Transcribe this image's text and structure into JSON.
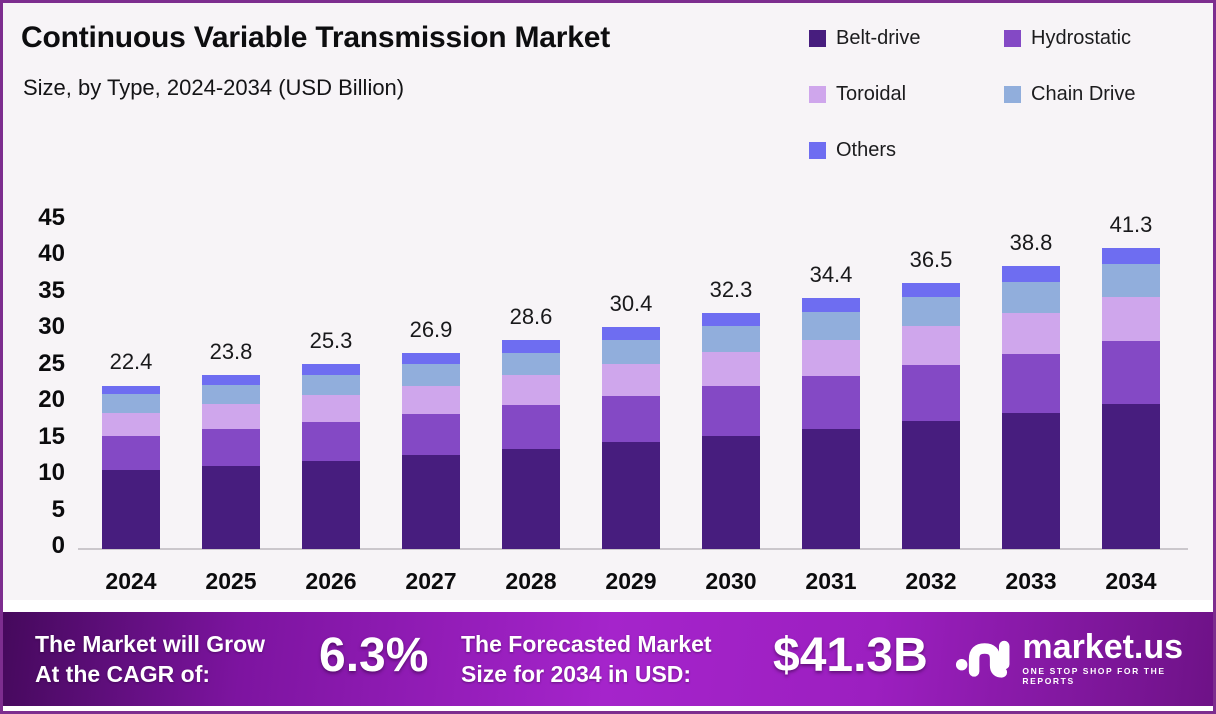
{
  "header": {
    "title": "Continuous Variable Transmission Market",
    "subtitle": "Size, by Type, 2024-2034 (USD Billion)"
  },
  "legend": {
    "items": [
      {
        "label": "Belt-drive",
        "color": "#471d7e"
      },
      {
        "label": "Hydrostatic",
        "color": "#8449c5"
      },
      {
        "label": "Toroidal",
        "color": "#cfa6ec"
      },
      {
        "label": "Chain Drive",
        "color": "#91aedc"
      },
      {
        "label": "Others",
        "color": "#6e6df1"
      }
    ]
  },
  "chart_data": {
    "type": "bar",
    "stacked": true,
    "title": "Continuous Variable Transmission Market Size, by Type, 2024-2034 (USD Billion)",
    "categories": [
      "2024",
      "2025",
      "2026",
      "2027",
      "2028",
      "2029",
      "2030",
      "2031",
      "2032",
      "2033",
      "2034"
    ],
    "totals": [
      22.4,
      23.8,
      25.3,
      26.9,
      28.6,
      30.4,
      32.3,
      34.4,
      36.5,
      38.8,
      41.3
    ],
    "series": [
      {
        "name": "Belt-drive",
        "color": "#471d7e",
        "values": [
          10.8,
          11.4,
          12.1,
          12.9,
          13.7,
          14.6,
          15.5,
          16.5,
          17.5,
          18.6,
          19.8
        ]
      },
      {
        "name": "Hydrostatic",
        "color": "#8449c5",
        "values": [
          4.7,
          5.0,
          5.3,
          5.6,
          6.0,
          6.4,
          6.8,
          7.2,
          7.7,
          8.1,
          8.7
        ]
      },
      {
        "name": "Toroidal",
        "color": "#cfa6ec",
        "values": [
          3.2,
          3.5,
          3.7,
          3.9,
          4.1,
          4.4,
          4.7,
          5.0,
          5.3,
          5.6,
          6.0
        ]
      },
      {
        "name": "Chain Drive",
        "color": "#91aedc",
        "values": [
          2.5,
          2.6,
          2.8,
          3.0,
          3.1,
          3.3,
          3.6,
          3.8,
          4.0,
          4.3,
          4.5
        ]
      },
      {
        "name": "Others",
        "color": "#6e6df1",
        "values": [
          1.2,
          1.3,
          1.4,
          1.5,
          1.7,
          1.7,
          1.7,
          1.9,
          2.0,
          2.2,
          2.3
        ]
      }
    ],
    "xlabel": "",
    "ylabel": "",
    "ylim": [
      0,
      45
    ],
    "ytick_step": 5,
    "grid": false,
    "legend_position": "top-right"
  },
  "banner": {
    "cagr_label_line1": "The Market will Grow",
    "cagr_label_line2": "At the CAGR of:",
    "cagr_value": "6.3%",
    "forecast_label_line1": "The Forecasted Market",
    "forecast_label_line2": "Size for 2034 in USD:",
    "forecast_value": "$41.3B",
    "logo_text": "market.us",
    "logo_tagline": "ONE STOP SHOP FOR THE REPORTS"
  }
}
